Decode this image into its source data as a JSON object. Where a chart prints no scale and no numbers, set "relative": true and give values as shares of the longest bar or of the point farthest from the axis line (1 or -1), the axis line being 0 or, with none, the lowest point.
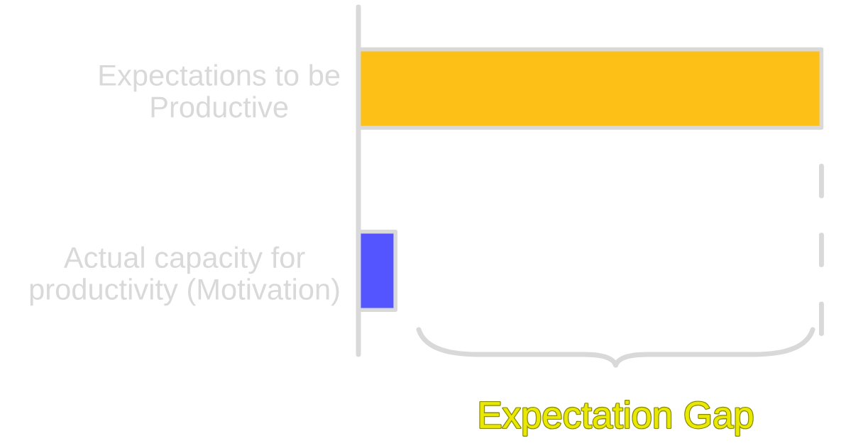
{
  "chart_data": {
    "type": "bar",
    "orientation": "horizontal",
    "relative": true,
    "categories": [
      "Expectations to be Productive",
      "Actual capacity for productivity (Motivation)"
    ],
    "values": [
      1,
      0.08
    ],
    "colors": [
      "#fdc016",
      "#5555ff"
    ],
    "ref_lines": [
      {
        "axis": "x",
        "value": 1,
        "line_style": "dashed",
        "color": "#d9d9d9"
      }
    ],
    "annotations": [
      "Expectation Gap"
    ]
  }
}
